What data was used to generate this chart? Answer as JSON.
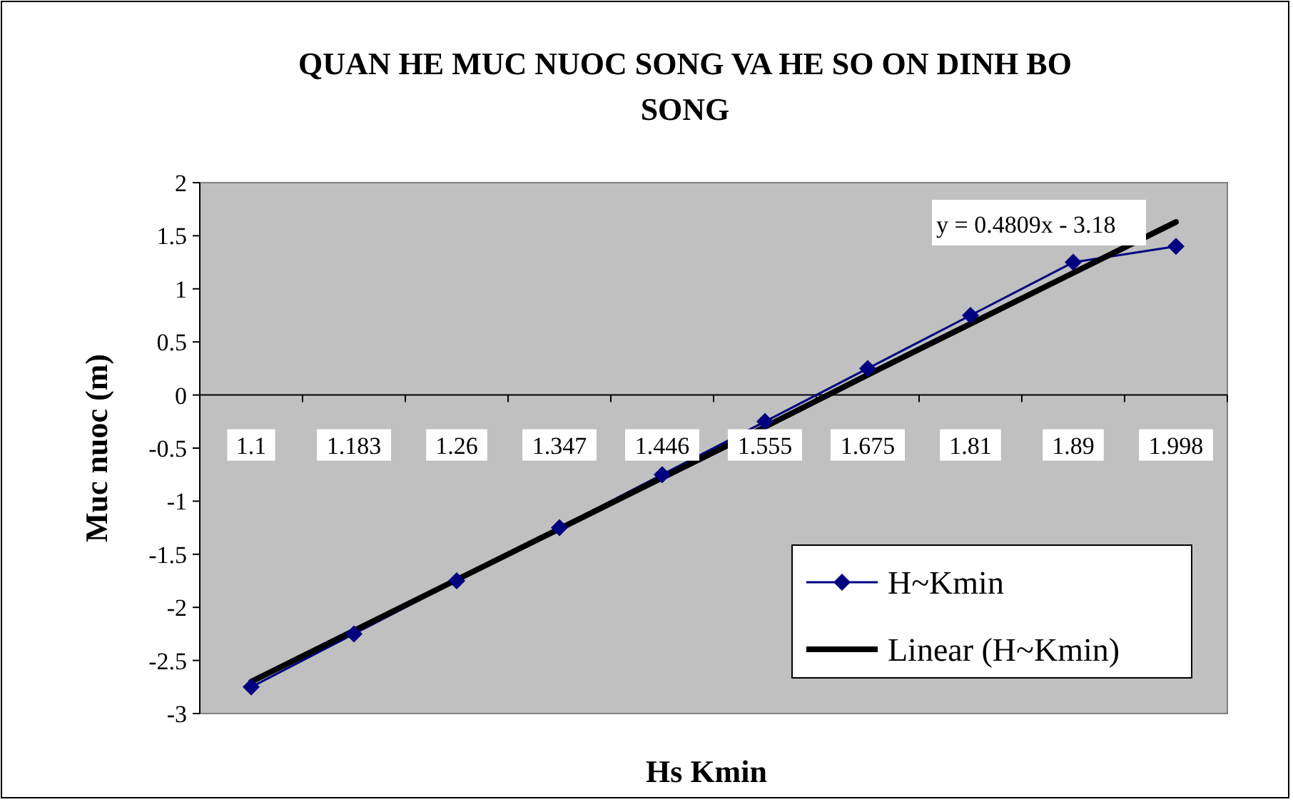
{
  "chart_data": {
    "type": "line",
    "title": "QUAN HE MUC NUOC SONG VA HE SO ON DINH BO SONG",
    "xlabel": "Hs Kmin",
    "ylabel": "Muc nuoc (m)",
    "categories": [
      "1.1",
      "1.183",
      "1.26",
      "1.347",
      "1.446",
      "1.555",
      "1.675",
      "1.81",
      "1.89",
      "1.998"
    ],
    "series": [
      {
        "name": "H~Kmin",
        "color": "#000080",
        "marker": "diamond",
        "values": [
          -2.75,
          -2.25,
          -1.75,
          -1.25,
          -0.75,
          -0.25,
          0.25,
          0.75,
          1.25,
          1.4
        ]
      },
      {
        "name": "Linear (H~Kmin)",
        "color": "#000000",
        "marker": "none",
        "values": [
          -2.7,
          -2.22,
          -1.74,
          -1.26,
          -0.78,
          -0.3,
          0.19,
          0.67,
          1.15,
          1.63
        ]
      }
    ],
    "ylim": [
      -3,
      2
    ],
    "yticks": [
      -3,
      -2.5,
      -2,
      -1.5,
      -1,
      -0.5,
      0,
      0.5,
      1,
      1.5,
      2
    ],
    "grid": false,
    "legend": "bottom right",
    "annotations": [
      "y = 0.4809x - 3.18"
    ]
  }
}
